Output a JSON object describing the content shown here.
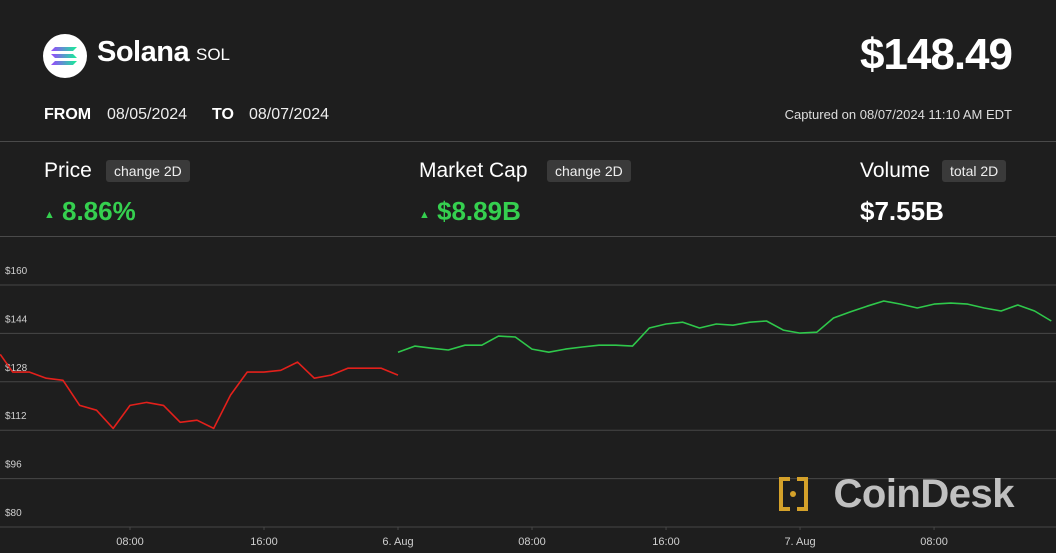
{
  "header": {
    "coin": "Solana",
    "symbol": "SOL",
    "price": "$148.49",
    "from_label": "FROM",
    "from_date": "08/05/2024",
    "to_label": "TO",
    "to_date": "08/07/2024",
    "captured": "Captured on 08/07/2024 11:10 AM EDT"
  },
  "stats": [
    {
      "label": "Price",
      "badge": "change 2D",
      "value": "8.86%"
    },
    {
      "label": "Market Cap",
      "badge": "change 2D",
      "value": "$8.89B"
    },
    {
      "label": "Volume",
      "badge": "total 2D",
      "value": "$7.55B"
    }
  ],
  "watermark": "CoinDesk",
  "chart_data": {
    "type": "line",
    "x": [
      0.25,
      1,
      2,
      3,
      4,
      5,
      6,
      7,
      8,
      9,
      10,
      11,
      12,
      13,
      14,
      15,
      16,
      17,
      18,
      19,
      20,
      21,
      22,
      23,
      24,
      25,
      26,
      27,
      28,
      29,
      30,
      31,
      32,
      33,
      34,
      35,
      36,
      37,
      38,
      39,
      40,
      41,
      42,
      43,
      44,
      45,
      46,
      47,
      48,
      49,
      50,
      51,
      52,
      53,
      54,
      55,
      56,
      57,
      58,
      59,
      60,
      61,
      62,
      63
    ],
    "xlim": [
      0.24,
      63.28
    ],
    "xticks": [
      {
        "value": 8,
        "label": "08:00"
      },
      {
        "value": 16,
        "label": "16:00"
      },
      {
        "value": 24,
        "label": "6. Aug"
      },
      {
        "value": 32,
        "label": "08:00"
      },
      {
        "value": 40,
        "label": "16:00"
      },
      {
        "value": 48,
        "label": "7. Aug"
      },
      {
        "value": 56,
        "label": "08:00"
      }
    ],
    "ylim": [
      80,
      176
    ],
    "yticks": [
      {
        "value": 80,
        "label": "$80"
      },
      {
        "value": 96,
        "label": "$96"
      },
      {
        "value": 112,
        "label": "$112"
      },
      {
        "value": 128,
        "label": "$128"
      },
      {
        "value": 144,
        "label": "$144"
      },
      {
        "value": 160,
        "label": "$160"
      }
    ],
    "grid": true,
    "series": [
      {
        "color": "#e3201b",
        "values": [
          137.1,
          131.2,
          131.2,
          129.2,
          128.5,
          120.2,
          118.6,
          112.6,
          120.2,
          121.2,
          120.2,
          114.6,
          115.3,
          112.6,
          123.6,
          131.2,
          131.2,
          131.8,
          134.5,
          129.2,
          130.2,
          132.5,
          132.5,
          132.5,
          130.2,
          null,
          null,
          null,
          null,
          null,
          null,
          null,
          null,
          null,
          null,
          null,
          null,
          null,
          null,
          null,
          null,
          null,
          null,
          null,
          null,
          null,
          null,
          null,
          null,
          null,
          null,
          null,
          null,
          null,
          null,
          null,
          null,
          null,
          null,
          null,
          null,
          null,
          null,
          null
        ]
      },
      {
        "color": "#2fc84b",
        "values": [
          null,
          null,
          null,
          null,
          null,
          null,
          null,
          null,
          null,
          null,
          null,
          null,
          null,
          null,
          null,
          null,
          null,
          null,
          null,
          null,
          null,
          null,
          null,
          null,
          137.8,
          139.8,
          139.1,
          138.5,
          140.1,
          140.1,
          143.1,
          142.8,
          138.8,
          137.8,
          138.8,
          139.5,
          140.1,
          140.1,
          139.8,
          145.8,
          147.1,
          147.7,
          145.8,
          147.1,
          146.7,
          147.7,
          148.1,
          145.1,
          144.1,
          144.4,
          149.1,
          151.1,
          153.0,
          154.7,
          153.7,
          152.4,
          153.7,
          154.0,
          153.7,
          152.4,
          151.4,
          153.4,
          151.4,
          148.1
        ]
      }
    ]
  }
}
